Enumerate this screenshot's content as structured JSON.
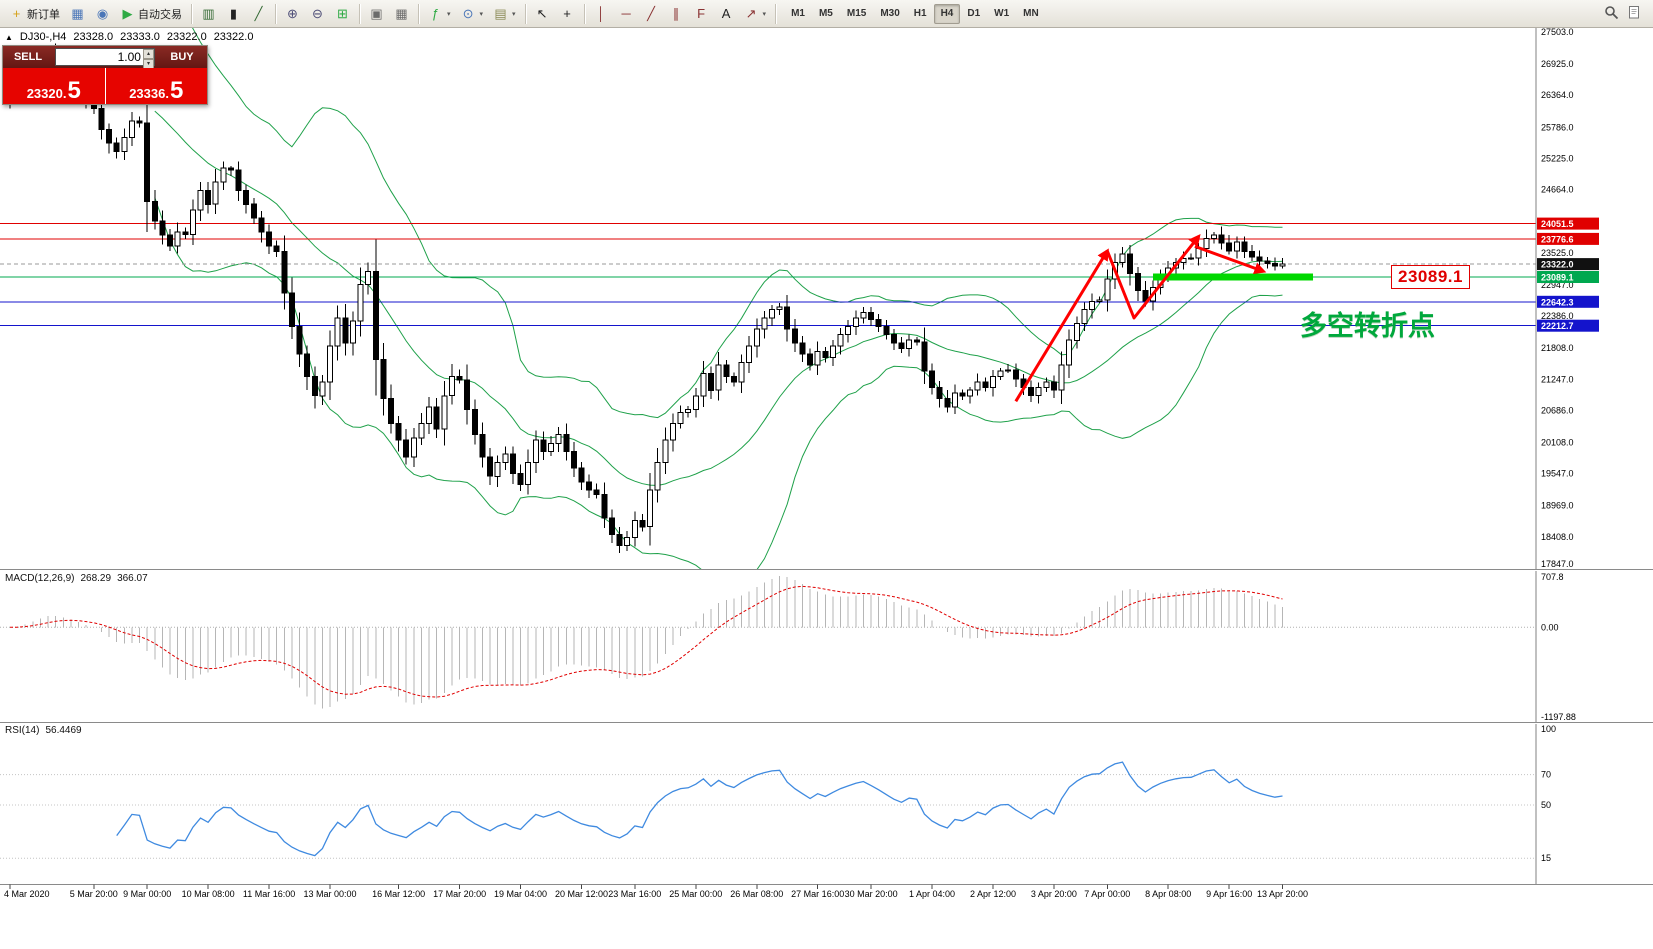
{
  "icons": {
    "marker": "▲",
    "caret_up": "▴",
    "caret_down": "▾",
    "dropdown": "▾"
  },
  "toolbar": {
    "groups": [
      {
        "items": [
          {
            "name": "new-order-button",
            "glyph": "+",
            "glyph_color": "#d4a017",
            "label": "新订单"
          },
          {
            "name": "charts-list-button",
            "glyph": "▦",
            "glyph_color": "#4a76b8"
          },
          {
            "name": "profiles-button",
            "glyph": "◉",
            "glyph_color": "#4a76b8"
          },
          {
            "name": "auto-trading-button",
            "glyph": "▶",
            "glyph_color": "#2faa44",
            "label": "自动交易"
          }
        ]
      },
      {
        "items": [
          {
            "name": "bar-chart-button",
            "glyph": "▥",
            "glyph_color": "#356a35"
          },
          {
            "name": "candlestick-chart-button",
            "glyph": "▮",
            "glyph_color": "#222222"
          },
          {
            "name": "line-chart-button",
            "glyph": "╱",
            "glyph_color": "#356a35"
          }
        ]
      },
      {
        "items": [
          {
            "name": "zoom-in-button",
            "glyph": "⊕",
            "glyph_color": "#4f4f78"
          },
          {
            "name": "zoom-out-button",
            "glyph": "⊖",
            "glyph_color": "#4f4f78"
          },
          {
            "name": "auto-arrange-button",
            "glyph": "⊞",
            "glyph_color": "#2faa44"
          }
        ]
      },
      {
        "items": [
          {
            "name": "cascade-windows-button",
            "glyph": "▣",
            "glyph_color": "#6b6b6b"
          },
          {
            "name": "tile-windows-button",
            "glyph": "▦",
            "glyph_color": "#6b6b6b"
          }
        ]
      },
      {
        "items": [
          {
            "name": "indicators-button",
            "glyph": "ƒ",
            "glyph_color": "#2faa44",
            "dropdown": true
          },
          {
            "name": "periods-button",
            "glyph": "⊙",
            "glyph_color": "#4a76b8",
            "dropdown": true
          },
          {
            "name": "templates-button",
            "glyph": "▤",
            "glyph_color": "#8a8a55",
            "dropdown": true
          }
        ]
      },
      {
        "items": [
          {
            "name": "cursor-button",
            "glyph": "↖",
            "glyph_color": "#222222"
          },
          {
            "name": "crosshair-button",
            "glyph": "+",
            "glyph_color": "#222222"
          }
        ]
      },
      {
        "items": [
          {
            "name": "vertical-line-button",
            "glyph": "│",
            "glyph_color": "#8a3333"
          },
          {
            "name": "horizontal-line-button",
            "glyph": "─",
            "glyph_color": "#8a3333"
          },
          {
            "name": "trendline-button",
            "glyph": "╱",
            "glyph_color": "#8a3333"
          },
          {
            "name": "channel-button",
            "glyph": "∥",
            "glyph_color": "#8a3333"
          },
          {
            "name": "fibonacci-button",
            "glyph": "F",
            "glyph_color": "#8a3333"
          },
          {
            "name": "text-button",
            "glyph": "A",
            "glyph_color": "#222222"
          },
          {
            "name": "arrows-button",
            "glyph": "↗",
            "glyph_color": "#8a3333",
            "dropdown": true
          }
        ]
      }
    ],
    "timeframes": [
      "M1",
      "M5",
      "M15",
      "M30",
      "H1",
      "H4",
      "D1",
      "W1",
      "MN"
    ],
    "active_timeframe": "H4"
  },
  "chart": {
    "header": {
      "symbol": "DJ30-,H4",
      "open": "23328.0",
      "high": "23333.0",
      "low": "23322.0",
      "close": "23322.0"
    }
  },
  "trade_panel": {
    "sell_label": "SELL",
    "buy_label": "BUY",
    "volume": "1.00",
    "sell_price": "23320.",
    "sell_price_big": "5",
    "buy_price": "23336.",
    "buy_price_big": "5"
  },
  "price_axis": {
    "ticks": [
      "27503.0",
      "26925.0",
      "26364.0",
      "25786.0",
      "25225.0",
      "24664.0",
      "23525.0",
      "22947.0",
      "22386.0",
      "21808.0",
      "21247.0",
      "20686.0",
      "20108.0",
      "19547.0",
      "18969.0",
      "18408.0",
      "17847.0"
    ]
  },
  "levels": [
    {
      "value": 24051.5,
      "label": "24051.5",
      "color": "#e00000",
      "style": "solid"
    },
    {
      "value": 23776.6,
      "label": "23776.6",
      "color": "#e00000",
      "style": "solid"
    },
    {
      "value": 23322.0,
      "label": "23322.0",
      "color": "#111111",
      "style": "dashed"
    },
    {
      "value": 23089.1,
      "label": "23089.1",
      "color": "#00a84f",
      "style": "solid"
    },
    {
      "value": 22642.3,
      "label": "22642.3",
      "color": "#1414cc",
      "style": "solid"
    },
    {
      "value": 22212.7,
      "label": "22212.7",
      "color": "#1414cc",
      "style": "solid"
    }
  ],
  "annotations": {
    "big_price_label": "23089.1",
    "turning_point_text": "多空转折点",
    "green_segment": {
      "price": 23089.1,
      "from_index": 150,
      "to_index": 171
    },
    "arrow_color": "#ff0000",
    "arrows": [
      {
        "points": [
          [
            132,
            20850
          ],
          [
            144,
            23560
          ]
        ]
      },
      {
        "points": [
          [
            144,
            23560
          ],
          [
            147.5,
            22350
          ],
          [
            156,
            23820
          ]
        ]
      },
      {
        "points": [
          [
            155.5,
            23640
          ],
          [
            164.5,
            23190
          ]
        ]
      }
    ]
  },
  "macd_panel": {
    "label": "MACD(12,26,9)",
    "value1": "268.29",
    "value2": "366.07",
    "axis_max": "707.8",
    "axis_zero": "0.00",
    "axis_min": "-1197.88"
  },
  "rsi_panel": {
    "label": "RSI(14)",
    "value": "56.4469",
    "axis": [
      "100",
      "70",
      "50",
      "15"
    ],
    "levels": [
      70,
      50,
      15
    ]
  },
  "time_axis": {
    "labels": [
      "4 Mar 2020",
      "5 Mar 20:00",
      "9 Mar 00:00",
      "10 Mar 08:00",
      "11 Mar 16:00",
      "13 Mar 00:00",
      "16 Mar 12:00",
      "17 Mar 20:00",
      "19 Mar 04:00",
      "20 Mar 12:00",
      "23 Mar 16:00",
      "25 Mar 00:00",
      "26 Mar 08:00",
      "27 Mar 16:00",
      "30 Mar 20:00",
      "1 Apr 04:00",
      "2 Apr 12:00",
      "3 Apr 20:00",
      "7 Apr 00:00",
      "8 Apr 08:00",
      "9 Apr 16:00",
      "13 Apr 20:00"
    ],
    "indices": [
      0,
      11,
      18,
      26,
      34,
      42,
      51,
      59,
      67,
      75,
      82,
      90,
      98,
      106,
      113,
      121,
      129,
      137,
      144,
      152,
      160,
      167
    ]
  },
  "chart_data": {
    "type": "candlestick",
    "symbol": "DJ30",
    "timeframe": "H4",
    "title": "DJ30-,H4",
    "price_range": {
      "max": 27503.0,
      "min": 17847.0
    },
    "first_open": 26200,
    "closes": [
      26350,
      26500,
      26700,
      26900,
      27050,
      27090,
      26800,
      26600,
      26450,
      26300,
      26200,
      26121,
      25750,
      25500,
      25350,
      25600,
      25900,
      25864,
      24450,
      24100,
      23850,
      23650,
      23900,
      23851,
      24300,
      24650,
      24400,
      24800,
      25050,
      25018,
      24650,
      24400,
      24150,
      23900,
      23650,
      23553,
      22800,
      22200,
      21700,
      21300,
      20950,
      21200,
      21850,
      22350,
      21900,
      22300,
      22950,
      23185,
      21600,
      20900,
      20450,
      20150,
      19850,
      20188,
      20450,
      20750,
      20350,
      20950,
      21300,
      21237,
      20700,
      20250,
      19850,
      19500,
      19750,
      19898,
      19550,
      19350,
      19750,
      20150,
      19950,
      20087,
      20250,
      19950,
      19650,
      19400,
      19250,
      19173,
      18750,
      18450,
      18250,
      18400,
      18700,
      18591,
      19250,
      19750,
      20150,
      20450,
      20650,
      20704,
      20950,
      21350,
      21050,
      21500,
      21300,
      21200,
      21550,
      21850,
      22150,
      22350,
      22500,
      22552,
      22150,
      21900,
      21700,
      21500,
      21750,
      21636,
      21850,
      22050,
      22200,
      22350,
      22450,
      22327,
      22200,
      22050,
      21900,
      21800,
      21950,
      21917,
      21400,
      21100,
      20900,
      20750,
      21000,
      20943,
      21050,
      21200,
      21100,
      21300,
      21400,
      21413,
      21250,
      21100,
      20950,
      21100,
      21200,
      21052,
      21500,
      21950,
      22250,
      22500,
      22650,
      22679,
      23050,
      23350,
      23500,
      23150,
      22850,
      22653,
      22900,
      23100,
      23250,
      23350,
      23420,
      23433,
      23600,
      23780,
      23850,
      23700,
      23560,
      23719,
      23550,
      23450,
      23380,
      23330,
      23290,
      23322
    ],
    "indicators": [
      {
        "name": "Bollinger Bands",
        "period": 20,
        "deviation": 2
      },
      {
        "name": "MACD",
        "fast": 12,
        "slow": 26,
        "signal": 9,
        "values": [
          268.29,
          366.07
        ]
      },
      {
        "name": "RSI",
        "period": 14,
        "value": 56.4469
      }
    ]
  }
}
